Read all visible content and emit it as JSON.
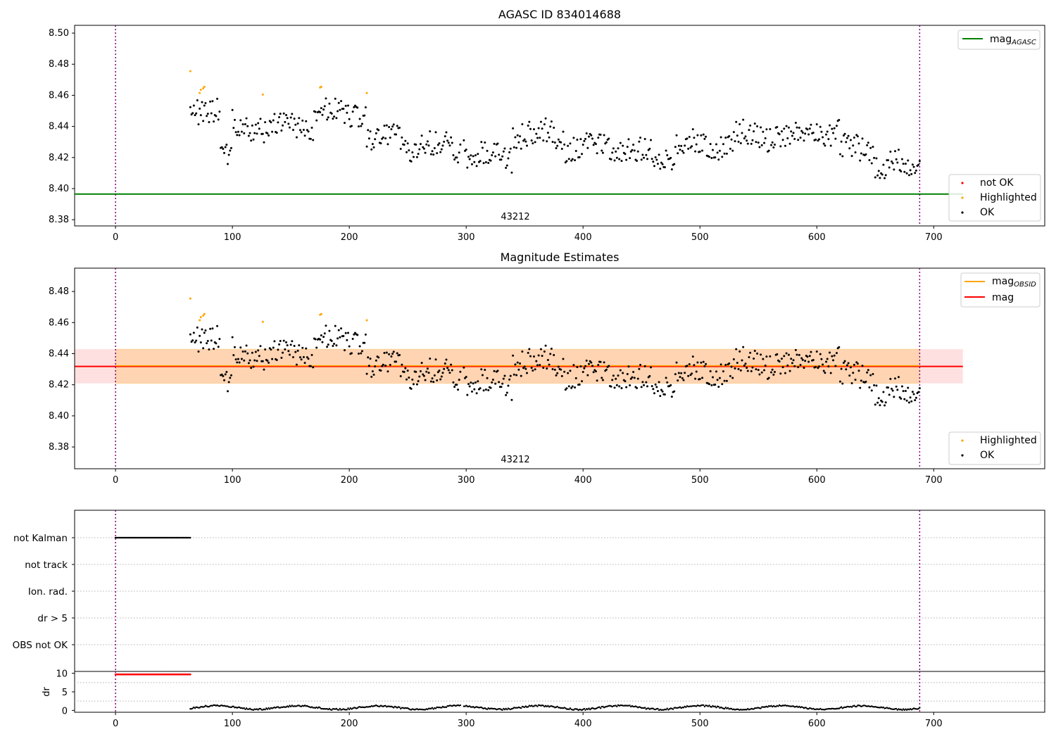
{
  "chart_data": [
    {
      "type": "scatter",
      "title": "AGASC ID 834014688",
      "xlim": [
        -35,
        795
      ],
      "ylim": [
        8.376,
        8.505
      ],
      "xticks": [
        0,
        100,
        200,
        300,
        400,
        500,
        600,
        700
      ],
      "yticks": [
        8.38,
        8.4,
        8.42,
        8.44,
        8.46,
        8.48,
        8.5
      ],
      "annotation": "43212",
      "vlines": [
        0,
        688
      ],
      "hline": {
        "name": "mag",
        "subscript": "AGASC",
        "y": 8.3965,
        "color": "#008000"
      },
      "legend": [
        "not OK",
        "Highlighted",
        "OK"
      ],
      "series": [
        {
          "name": "OK",
          "color": "#000000"
        },
        {
          "name": "Highlighted",
          "color": "#ffa500"
        },
        {
          "name": "not OK",
          "color": "#ff0000"
        }
      ]
    },
    {
      "type": "scatter",
      "title": "Magnitude Estimates",
      "xlim": [
        -35,
        795
      ],
      "ylim": [
        8.366,
        8.495
      ],
      "xticks": [
        0,
        100,
        200,
        300,
        400,
        500,
        600,
        700
      ],
      "yticks": [
        8.38,
        8.4,
        8.42,
        8.44,
        8.46,
        8.48
      ],
      "annotation": "43212",
      "vlines": [
        0,
        688
      ],
      "mag_line": {
        "name": "mag",
        "y": 8.4318,
        "band": [
          8.4209,
          8.4429
        ],
        "color": "#ff0000"
      },
      "mag_obsid": {
        "name": "mag",
        "subscript": "OBSID",
        "band": [
          8.4209,
          8.4429
        ],
        "color": "#ffa500"
      },
      "legend_lines": [
        "mag",
        "mag"
      ],
      "legend_points": [
        "Highlighted",
        "OK"
      ]
    },
    {
      "type": "scatter",
      "xlim": [
        -35,
        795
      ],
      "categories": [
        "not Kalman",
        "not track",
        "Ion. rad.",
        "dr > 5",
        "OBS not OK"
      ],
      "flag_ranges": {
        "not Kalman": [
          0,
          64
        ]
      },
      "xticks": [
        0,
        100,
        200,
        300,
        400,
        500,
        600,
        700
      ],
      "vlines": [
        0,
        688
      ]
    },
    {
      "type": "scatter",
      "ylabel": "dr",
      "xlim": [
        -35,
        795
      ],
      "ylim": [
        -0.5,
        10.5
      ],
      "yticks": [
        0,
        5,
        10
      ],
      "xticks": [
        0,
        100,
        200,
        300,
        400,
        500,
        600,
        700
      ],
      "red_segment": {
        "x": [
          0,
          64
        ],
        "y": 9.7
      },
      "vlines": [
        0,
        688
      ]
    }
  ]
}
